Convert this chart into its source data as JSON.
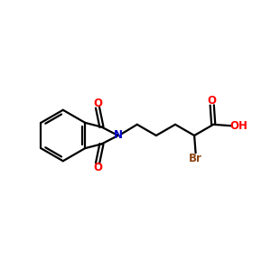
{
  "bg_color": "#ffffff",
  "bond_color": "#000000",
  "N_color": "#0000cc",
  "O_color": "#ff0000",
  "Br_color": "#8b4513",
  "line_width": 1.6,
  "font_size": 8.5,
  "fig_size": [
    3.0,
    3.0
  ],
  "dpi": 100,
  "xlim": [
    0,
    10
  ],
  "ylim": [
    2,
    8
  ]
}
